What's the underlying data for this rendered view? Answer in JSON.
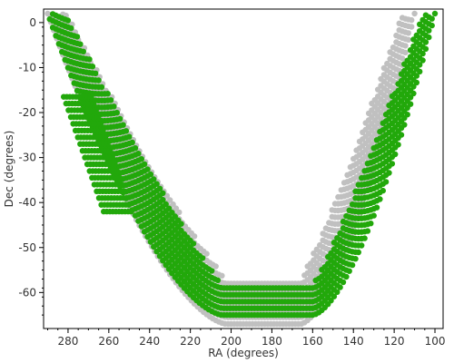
{
  "chart_data": {
    "type": "scatter",
    "title": "",
    "xlabel": "RA (degrees)",
    "ylabel": "Dec (degrees)",
    "xlim": [
      292,
      96
    ],
    "ylim": [
      -68,
      3
    ],
    "x_ticks": [
      280,
      260,
      240,
      220,
      200,
      180,
      160,
      140,
      120,
      100
    ],
    "y_ticks": [
      0,
      -10,
      -20,
      -30,
      -40,
      -50,
      -60
    ],
    "grid": false,
    "legend": "none",
    "point_spacing_deg": 1.5,
    "series": [
      {
        "color": "#c0c0c0",
        "band_type": "parabola",
        "ra_center": 184,
        "ra_half_width_at_min": 18,
        "dec_min_lower": -67,
        "dec_min_upper": -57,
        "dec_top": 2,
        "ra_top_range": [
          110,
          290
        ]
      },
      {
        "color": "#22a80b",
        "band_type": "parabola",
        "ra_center": 182,
        "ra_half_width_at_min": 22,
        "dec_min_lower": -65,
        "dec_min_upper": -58,
        "dec_top": 2,
        "ra_top_range": [
          100,
          290
        ]
      },
      {
        "color": "#22a80b",
        "band_type": "diagonal",
        "from_ra": 276,
        "to_ra": 256,
        "dec_range": [
          -42,
          -16
        ],
        "width_deg": 14
      }
    ]
  }
}
